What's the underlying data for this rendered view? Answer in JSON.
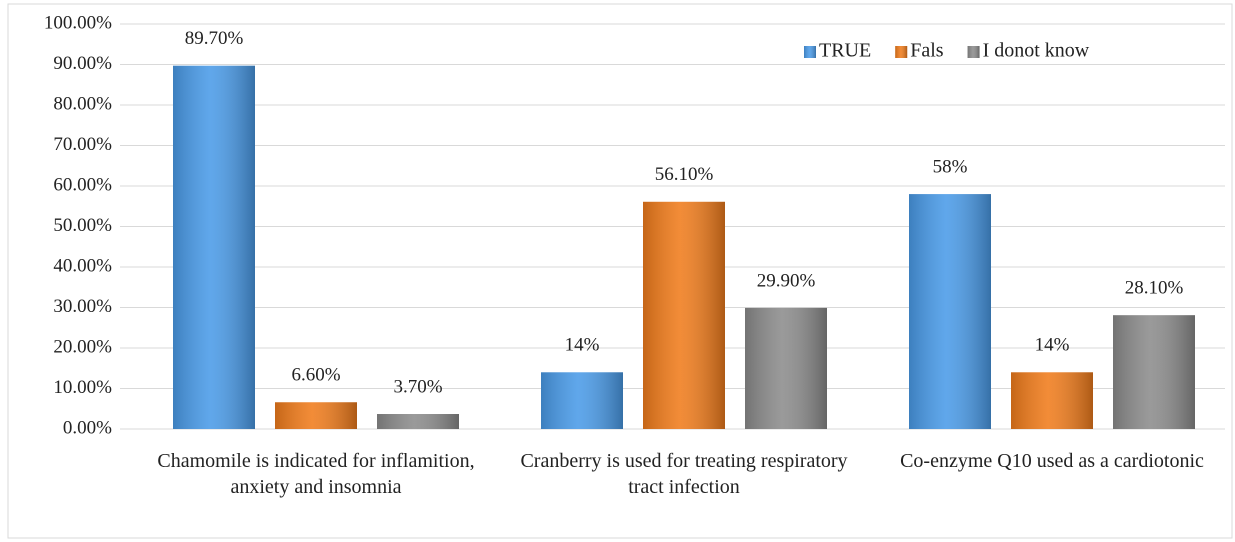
{
  "chart_data": {
    "type": "bar",
    "categories": [
      "Chamomile is indicated for inflamition, anxiety and insomnia",
      "Cranberry is used for treating respiratory tract infection",
      "Co-enzyme Q10 used as a cardiotonic"
    ],
    "series": [
      {
        "name": "TRUE",
        "color": "#4a9be8",
        "values": [
          89.7,
          14,
          58
        ],
        "value_labels": [
          "89.70%",
          "14%",
          "58%"
        ]
      },
      {
        "name": "Fals",
        "color": "#f07c1c",
        "values": [
          6.6,
          56.1,
          14
        ],
        "value_labels": [
          "6.60%",
          "56.10%",
          "14%"
        ]
      },
      {
        "name": "I donot know",
        "color": "#8c8c8c",
        "values": [
          3.7,
          29.9,
          28.1
        ],
        "value_labels": [
          "3.70%",
          "29.90%",
          "28.10%"
        ]
      }
    ],
    "ylim": [
      0,
      100
    ],
    "yticks": [
      {
        "value": 0,
        "label": "0.00%"
      },
      {
        "value": 10,
        "label": "10.00%"
      },
      {
        "value": 20,
        "label": "20.00%"
      },
      {
        "value": 30,
        "label": "30.00%"
      },
      {
        "value": 40,
        "label": "40.00%"
      },
      {
        "value": 50,
        "label": "50.00%"
      },
      {
        "value": 60,
        "label": "60.00%"
      },
      {
        "value": 70,
        "label": "70.00%"
      },
      {
        "value": 80,
        "label": "80.00%"
      },
      {
        "value": 90,
        "label": "90.00%"
      },
      {
        "value": 100,
        "label": "100.00%"
      }
    ],
    "grid": true,
    "legend": "top-right"
  }
}
